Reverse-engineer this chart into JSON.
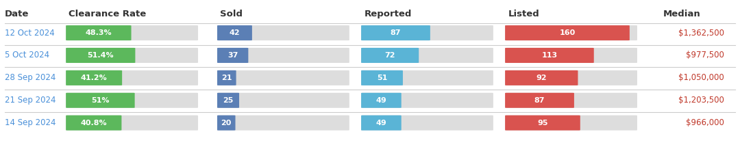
{
  "headers": [
    "Date",
    "Clearance Rate",
    "Sold",
    "Reported",
    "Listed",
    "Median"
  ],
  "rows": [
    {
      "date": "12 Oct 2024",
      "clearance_rate": 48.3,
      "clearance_label": "48.3%",
      "sold": 42,
      "reported": 87,
      "listed": 160,
      "median": "$1,362,500"
    },
    {
      "date": "5 Oct 2024",
      "clearance_rate": 51.4,
      "clearance_label": "51.4%",
      "sold": 37,
      "reported": 72,
      "listed": 113,
      "median": "$977,500"
    },
    {
      "date": "28 Sep 2024",
      "clearance_rate": 41.2,
      "clearance_label": "41.2%",
      "sold": 21,
      "reported": 51,
      "listed": 92,
      "median": "$1,050,000"
    },
    {
      "date": "21 Sep 2024",
      "clearance_rate": 51.0,
      "clearance_label": "51%",
      "sold": 25,
      "reported": 49,
      "listed": 87,
      "median": "$1,203,500"
    },
    {
      "date": "14 Sep 2024",
      "clearance_rate": 40.8,
      "clearance_label": "40.8%",
      "sold": 20,
      "reported": 49,
      "listed": 95,
      "median": "$966,000"
    }
  ],
  "colors": {
    "green": "#5cb85c",
    "blue": "#5b7fb5",
    "light_blue": "#5ab4d6",
    "red": "#d9534f",
    "gray_bg": "#dddddd",
    "header_text": "#333333",
    "date_text": "#4a90d9",
    "median_text": "#c0392b",
    "white": "#ffffff",
    "row_bg": "#ffffff",
    "divider": "#cccccc"
  },
  "clearance_max": 100,
  "sold_max": 170,
  "reported_max": 170,
  "listed_max": 170,
  "col_positions": {
    "date": 0.0,
    "clearance": 0.09,
    "sold": 0.295,
    "reported": 0.49,
    "listed": 0.685,
    "median": 0.895
  },
  "col_widths": {
    "clearance": 0.175,
    "sold": 0.175,
    "reported": 0.175,
    "listed": 0.175
  }
}
